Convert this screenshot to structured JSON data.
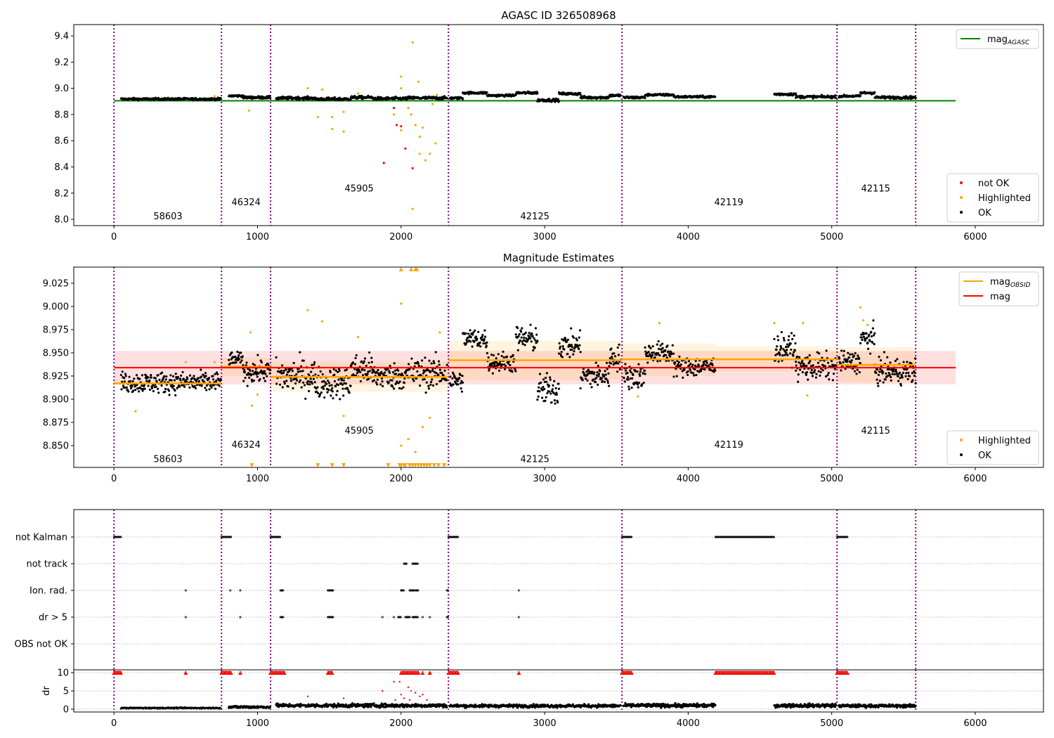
{
  "colors": {
    "ok": "#000000",
    "highlighted": "#ffa500",
    "not_ok": "#ff0000",
    "agasc": "#008000",
    "mag": "#ff0000",
    "mag_obsid": "#ffa500",
    "obsid_boundary": "#800080",
    "grid": "#b0b0b0"
  },
  "chart_data": [
    {
      "id": "agasc",
      "type": "scatter",
      "title": "AGASC ID 326508968",
      "xlim": [
        -280,
        6475
      ],
      "ylim": [
        7.952,
        9.486
      ],
      "xticks": [
        0,
        1000,
        2000,
        3000,
        4000,
        5000,
        6000
      ],
      "yticks": [
        "8.0",
        "8.2",
        "8.4",
        "8.6",
        "8.8",
        "9.0",
        "9.2",
        "9.4"
      ],
      "mag_agasc": {
        "value": 8.905,
        "x": [
          0,
          5864
        ]
      },
      "ok_segments": [
        [
          50,
          745,
          8.918,
          0.006
        ],
        [
          800,
          900,
          8.942,
          0.006
        ],
        [
          900,
          1090,
          8.93,
          0.007
        ],
        [
          1130,
          1400,
          8.925,
          0.008
        ],
        [
          1400,
          1650,
          8.918,
          0.008
        ],
        [
          1650,
          1800,
          8.93,
          0.008
        ],
        [
          1800,
          2050,
          8.922,
          0.008
        ],
        [
          2050,
          2320,
          8.926,
          0.008
        ],
        [
          2340,
          2430,
          8.925,
          0.006
        ],
        [
          2430,
          2600,
          8.965,
          0.006
        ],
        [
          2600,
          2800,
          8.945,
          0.006
        ],
        [
          2800,
          2950,
          8.965,
          0.007
        ],
        [
          2950,
          3100,
          8.91,
          0.008
        ],
        [
          3100,
          3250,
          8.958,
          0.007
        ],
        [
          3250,
          3450,
          8.93,
          0.007
        ],
        [
          3450,
          3530,
          8.945,
          0.007
        ],
        [
          3550,
          3700,
          8.93,
          0.007
        ],
        [
          3700,
          3900,
          8.95,
          0.006
        ],
        [
          3900,
          4190,
          8.935,
          0.006
        ],
        [
          4600,
          4750,
          8.955,
          0.007
        ],
        [
          4750,
          5030,
          8.935,
          0.007
        ],
        [
          5050,
          5200,
          8.94,
          0.006
        ],
        [
          5200,
          5300,
          8.965,
          0.007
        ],
        [
          5300,
          5585,
          8.93,
          0.007
        ]
      ],
      "highlighted": [
        [
          2080,
          9.35
        ],
        [
          2000,
          9.09
        ],
        [
          2120,
          9.05
        ],
        [
          1350,
          9.0
        ],
        [
          1450,
          8.99
        ],
        [
          2000,
          9.0
        ],
        [
          940,
          8.83
        ],
        [
          1420,
          8.78
        ],
        [
          1520,
          8.78
        ],
        [
          1520,
          8.69
        ],
        [
          1600,
          8.82
        ],
        [
          1600,
          8.67
        ],
        [
          1950,
          8.8
        ],
        [
          2000,
          8.68
        ],
        [
          2050,
          8.85
        ],
        [
          2070,
          8.8
        ],
        [
          2100,
          8.72
        ],
        [
          2130,
          8.63
        ],
        [
          2150,
          8.7
        ],
        [
          2170,
          8.45
        ],
        [
          2130,
          8.5
        ],
        [
          2200,
          8.5
        ],
        [
          2240,
          8.58
        ],
        [
          2080,
          8.08
        ],
        [
          2220,
          8.88
        ],
        [
          2250,
          8.95
        ],
        [
          700,
          8.94
        ],
        [
          1700,
          8.96
        ]
      ],
      "not_ok": [
        [
          1880,
          8.43
        ],
        [
          1970,
          8.72
        ],
        [
          2000,
          8.71
        ],
        [
          2030,
          8.54
        ],
        [
          2080,
          8.39
        ],
        [
          1950,
          8.85
        ]
      ],
      "obsid_labels": [
        {
          "text": "58603",
          "x": 376,
          "y": 8.027
        },
        {
          "text": "46324",
          "x": 920,
          "y": 8.134
        },
        {
          "text": "45905",
          "x": 1708,
          "y": 8.24
        },
        {
          "text": "42125",
          "x": 2932,
          "y": 8.027
        },
        {
          "text": "42119",
          "x": 4283,
          "y": 8.134
        },
        {
          "text": "42115",
          "x": 5306,
          "y": 8.24
        }
      ],
      "legend_top": [
        {
          "label": "mag",
          "sub": "AGASC",
          "kind": "line",
          "color": "#008000"
        }
      ],
      "legend_bottom": [
        {
          "label": "not OK",
          "kind": "dot",
          "color": "#ff0000"
        },
        {
          "label": "Highlighted",
          "kind": "dot",
          "color": "#ffa500"
        },
        {
          "label": "OK",
          "kind": "dot",
          "color": "#000000"
        }
      ]
    },
    {
      "id": "estimates",
      "type": "scatter",
      "title": "Magnitude Estimates",
      "xlim": [
        -280,
        6475
      ],
      "ylim": [
        8.8265,
        9.0424
      ],
      "xticks": [
        0,
        1000,
        2000,
        3000,
        4000,
        5000,
        6000
      ],
      "yticks": [
        "8.850",
        "8.875",
        "8.900",
        "8.925",
        "8.950",
        "8.975",
        "9.000",
        "9.025"
      ],
      "mag": {
        "value": 8.934,
        "band": [
          8.916,
          8.952
        ],
        "x": [
          0,
          5864
        ]
      },
      "mag_obsid": [
        {
          "x": [
            0,
            749
          ],
          "value": 8.917,
          "band": [
            8.915,
            8.92
          ]
        },
        {
          "x": [
            749,
            1091
          ],
          "value": 8.935,
          "band": [
            8.925,
            8.945
          ]
        },
        {
          "x": [
            1091,
            2330
          ],
          "value": 8.924,
          "band": [
            8.908,
            8.94
          ]
        },
        {
          "x": [
            2330,
            3539
          ],
          "value": 8.942,
          "band": [
            8.921,
            8.963
          ]
        },
        {
          "x": [
            3539,
            4190
          ],
          "value": 8.943,
          "band": [
            8.925,
            8.96
          ]
        },
        {
          "x": [
            4190,
            5037
          ],
          "value": 8.943,
          "band": [
            8.93,
            8.957
          ]
        },
        {
          "x": [
            5037,
            5585
          ],
          "value": 8.937,
          "band": [
            8.918,
            8.956
          ]
        }
      ],
      "ok_segments": [
        [
          50,
          745,
          8.918,
          0.008
        ],
        [
          800,
          900,
          8.942,
          0.006
        ],
        [
          900,
          1090,
          8.93,
          0.009
        ],
        [
          1130,
          1400,
          8.925,
          0.013
        ],
        [
          1400,
          1650,
          8.918,
          0.012
        ],
        [
          1650,
          1800,
          8.932,
          0.012
        ],
        [
          1800,
          2050,
          8.925,
          0.01
        ],
        [
          2050,
          2320,
          8.928,
          0.012
        ],
        [
          2340,
          2430,
          8.92,
          0.008
        ],
        [
          2430,
          2600,
          8.965,
          0.008
        ],
        [
          2600,
          2800,
          8.94,
          0.008
        ],
        [
          2800,
          2950,
          8.965,
          0.01
        ],
        [
          2950,
          3100,
          8.91,
          0.012
        ],
        [
          3100,
          3250,
          8.958,
          0.01
        ],
        [
          3250,
          3450,
          8.925,
          0.01
        ],
        [
          3450,
          3530,
          8.945,
          0.01
        ],
        [
          3550,
          3700,
          8.925,
          0.01
        ],
        [
          3700,
          3900,
          8.95,
          0.008
        ],
        [
          3900,
          4190,
          8.935,
          0.008
        ],
        [
          4600,
          4750,
          8.955,
          0.01
        ],
        [
          4750,
          5030,
          8.935,
          0.01
        ],
        [
          5050,
          5200,
          8.94,
          0.008
        ],
        [
          5200,
          5300,
          8.965,
          0.01
        ],
        [
          5300,
          5585,
          8.93,
          0.01
        ]
      ],
      "highlighted": [
        [
          1350,
          8.996
        ],
        [
          1450,
          8.984
        ],
        [
          950,
          8.972
        ],
        [
          960,
          8.893
        ],
        [
          1000,
          8.905
        ],
        [
          150,
          8.887
        ],
        [
          500,
          8.94
        ],
        [
          700,
          8.94
        ],
        [
          2000,
          9.003
        ],
        [
          2050,
          8.857
        ],
        [
          2000,
          8.85
        ],
        [
          2100,
          8.843
        ],
        [
          2150,
          8.87
        ],
        [
          2200,
          8.88
        ],
        [
          1600,
          8.882
        ],
        [
          1700,
          8.967
        ],
        [
          2270,
          8.972
        ],
        [
          3650,
          8.903
        ],
        [
          3800,
          8.982
        ],
        [
          4600,
          8.982
        ],
        [
          4800,
          8.982
        ],
        [
          4830,
          8.904
        ],
        [
          5200,
          8.999
        ],
        [
          5220,
          8.985
        ],
        [
          5250,
          8.98
        ]
      ],
      "clipped_low": [
        960,
        1420,
        1520,
        1600,
        1910,
        1990,
        2000,
        2020,
        2030,
        2060,
        2080,
        2100,
        2120,
        2140,
        2160,
        2180,
        2200,
        2230,
        2260,
        2300
      ],
      "clipped_high": [
        2000,
        2070,
        2100,
        2110
      ],
      "obsid_labels": [
        {
          "text": "58603",
          "x": 376,
          "y": 8.836
        },
        {
          "text": "46324",
          "x": 920,
          "y": 8.8515
        },
        {
          "text": "45905",
          "x": 1708,
          "y": 8.8667
        },
        {
          "text": "42125",
          "x": 2932,
          "y": 8.836
        },
        {
          "text": "42119",
          "x": 4283,
          "y": 8.8515
        },
        {
          "text": "42115",
          "x": 5306,
          "y": 8.8667
        }
      ],
      "legend_top": [
        {
          "label": "mag",
          "sub": "OBSID",
          "kind": "line",
          "color": "#ffa500"
        },
        {
          "label": "mag",
          "kind": "line",
          "color": "#ff0000"
        }
      ],
      "legend_bottom": [
        {
          "label": "Highlighted",
          "kind": "dot",
          "color": "#ffa500"
        },
        {
          "label": "OK",
          "kind": "dot",
          "color": "#000000"
        }
      ]
    },
    {
      "id": "flags",
      "type": "scatter",
      "xlim": [
        -280,
        6475
      ],
      "categories": [
        "not Kalman",
        "not track",
        "Ion. rad.",
        "dr > 5",
        "OBS not OK"
      ],
      "flag_ranges": {
        "not Kalman": [
          [
            0,
            50
          ],
          [
            749,
            820
          ],
          [
            1091,
            1160
          ],
          [
            2330,
            2400
          ],
          [
            3539,
            3610
          ],
          [
            4190,
            4600
          ],
          [
            5037,
            5110
          ]
        ],
        "not track": [
          [
            2020,
            2040
          ],
          [
            2080,
            2120
          ]
        ],
        "Ion. rad.": [
          [
            500,
            500
          ],
          [
            810,
            810
          ],
          [
            880,
            880
          ],
          [
            1160,
            1180
          ],
          [
            1490,
            1530
          ],
          [
            2000,
            2020
          ],
          [
            2060,
            2090
          ],
          [
            2100,
            2120
          ],
          [
            2320,
            2330
          ],
          [
            2820,
            2820
          ]
        ],
        "dr > 5": [
          [
            500,
            500
          ],
          [
            880,
            880
          ],
          [
            1160,
            1180
          ],
          [
            1490,
            1530
          ],
          [
            1870,
            1870
          ],
          [
            1950,
            1950
          ],
          [
            1980,
            2000
          ],
          [
            2030,
            2060
          ],
          [
            2080,
            2120
          ],
          [
            2150,
            2150
          ],
          [
            2200,
            2200
          ],
          [
            2320,
            2330
          ],
          [
            2820,
            2820
          ]
        ],
        "OBS not OK": []
      }
    },
    {
      "id": "dr",
      "type": "scatter",
      "ylabel": "dr",
      "xlim": [
        -280,
        6475
      ],
      "ylim": [
        -0.77,
        10.77
      ],
      "xticks": [
        0,
        1000,
        2000,
        3000,
        4000,
        5000,
        6000
      ],
      "yticks": [
        "0",
        "5",
        "10"
      ],
      "ok_segments": [
        [
          50,
          745,
          0.3,
          0.1
        ],
        [
          800,
          1090,
          0.6,
          0.25
        ],
        [
          1130,
          2320,
          1.0,
          0.35
        ],
        [
          2340,
          3530,
          0.9,
          0.3
        ],
        [
          3550,
          4190,
          1.0,
          0.35
        ],
        [
          4600,
          5030,
          1.0,
          0.35
        ],
        [
          5050,
          5585,
          0.9,
          0.3
        ]
      ],
      "clipped_red_ranges": [
        [
          0,
          50
        ],
        [
          500,
          500
        ],
        [
          749,
          820
        ],
        [
          880,
          880
        ],
        [
          1091,
          1190
        ],
        [
          1490,
          1520
        ],
        [
          2000,
          2120
        ],
        [
          2150,
          2150
        ],
        [
          2200,
          2200
        ],
        [
          2330,
          2400
        ],
        [
          2820,
          2820
        ],
        [
          3539,
          3610
        ],
        [
          4190,
          4600
        ],
        [
          5037,
          5110
        ]
      ],
      "red_points": [
        [
          1350,
          3.5
        ],
        [
          1600,
          3
        ],
        [
          1870,
          5
        ],
        [
          1950,
          7.5
        ],
        [
          1990,
          7.5
        ],
        [
          2000,
          4
        ],
        [
          2020,
          3
        ],
        [
          2050,
          6
        ],
        [
          2070,
          5
        ],
        [
          2100,
          4.5
        ],
        [
          2130,
          3.5
        ],
        [
          2150,
          4
        ],
        [
          2180,
          2.5
        ],
        [
          2060,
          2.5
        ],
        [
          1960,
          2.5
        ]
      ]
    }
  ],
  "obsid_boundaries": [
    0,
    749,
    1091,
    2330,
    3539,
    5037,
    5585
  ]
}
